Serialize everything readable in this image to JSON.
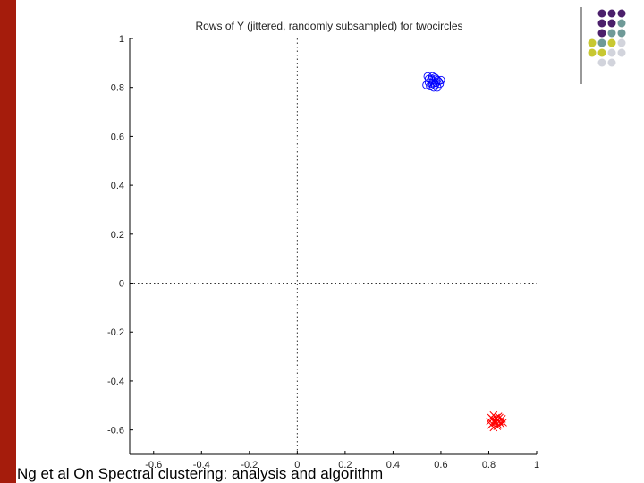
{
  "slide": {
    "caption": "Ng et al On Spectral clustering: analysis and algorithm",
    "accent_color": "#a51c0c",
    "dot_colors": {
      "purple": "#4b1f6b",
      "teal": "#6f9a98",
      "yellow": "#c8c832",
      "gray": "#d2d4dc"
    }
  },
  "chart_data": {
    "type": "scatter",
    "title": "Rows of Y (jittered, randomly subsampled) for twocircles",
    "xlabel": "",
    "ylabel": "",
    "xlim": [
      -0.7,
      1.0
    ],
    "ylim": [
      -0.7,
      1.0
    ],
    "xticks": [
      "-0.6",
      "-0.4",
      "-0.2",
      "0",
      "0.2",
      "0.4",
      "0.6",
      "0.8",
      "1"
    ],
    "yticks": [
      "1",
      "0.8",
      "0.6",
      "0.4",
      "0.2",
      "0",
      "-0.2",
      "-0.4",
      "-0.6"
    ],
    "reference_lines": {
      "x": 0,
      "y": 0,
      "style": "dotted"
    },
    "grid": false,
    "series": [
      {
        "marker": "circle",
        "color": "#0000ff",
        "points": [
          [
            0.545,
            0.845
          ],
          [
            0.56,
            0.835
          ],
          [
            0.575,
            0.84
          ],
          [
            0.585,
            0.83
          ],
          [
            0.55,
            0.82
          ],
          [
            0.565,
            0.815
          ],
          [
            0.58,
            0.82
          ],
          [
            0.59,
            0.825
          ],
          [
            0.555,
            0.805
          ],
          [
            0.57,
            0.8
          ],
          [
            0.6,
            0.83
          ],
          [
            0.54,
            0.81
          ],
          [
            0.575,
            0.81
          ],
          [
            0.56,
            0.83
          ],
          [
            0.585,
            0.8
          ],
          [
            0.55,
            0.835
          ],
          [
            0.565,
            0.845
          ],
          [
            0.58,
            0.835
          ],
          [
            0.57,
            0.82
          ],
          [
            0.595,
            0.815
          ]
        ]
      },
      {
        "marker": "x",
        "color": "#ff0000",
        "points": [
          [
            0.81,
            -0.55
          ],
          [
            0.825,
            -0.56
          ],
          [
            0.84,
            -0.545
          ],
          [
            0.83,
            -0.57
          ],
          [
            0.815,
            -0.575
          ],
          [
            0.835,
            -0.585
          ],
          [
            0.845,
            -0.565
          ],
          [
            0.82,
            -0.54
          ],
          [
            0.855,
            -0.555
          ],
          [
            0.805,
            -0.565
          ],
          [
            0.83,
            -0.55
          ],
          [
            0.84,
            -0.58
          ],
          [
            0.82,
            -0.59
          ],
          [
            0.85,
            -0.575
          ],
          [
            0.81,
            -0.58
          ],
          [
            0.825,
            -0.57
          ],
          [
            0.845,
            -0.55
          ],
          [
            0.835,
            -0.56
          ],
          [
            0.86,
            -0.57
          ],
          [
            0.815,
            -0.555
          ]
        ]
      }
    ]
  }
}
